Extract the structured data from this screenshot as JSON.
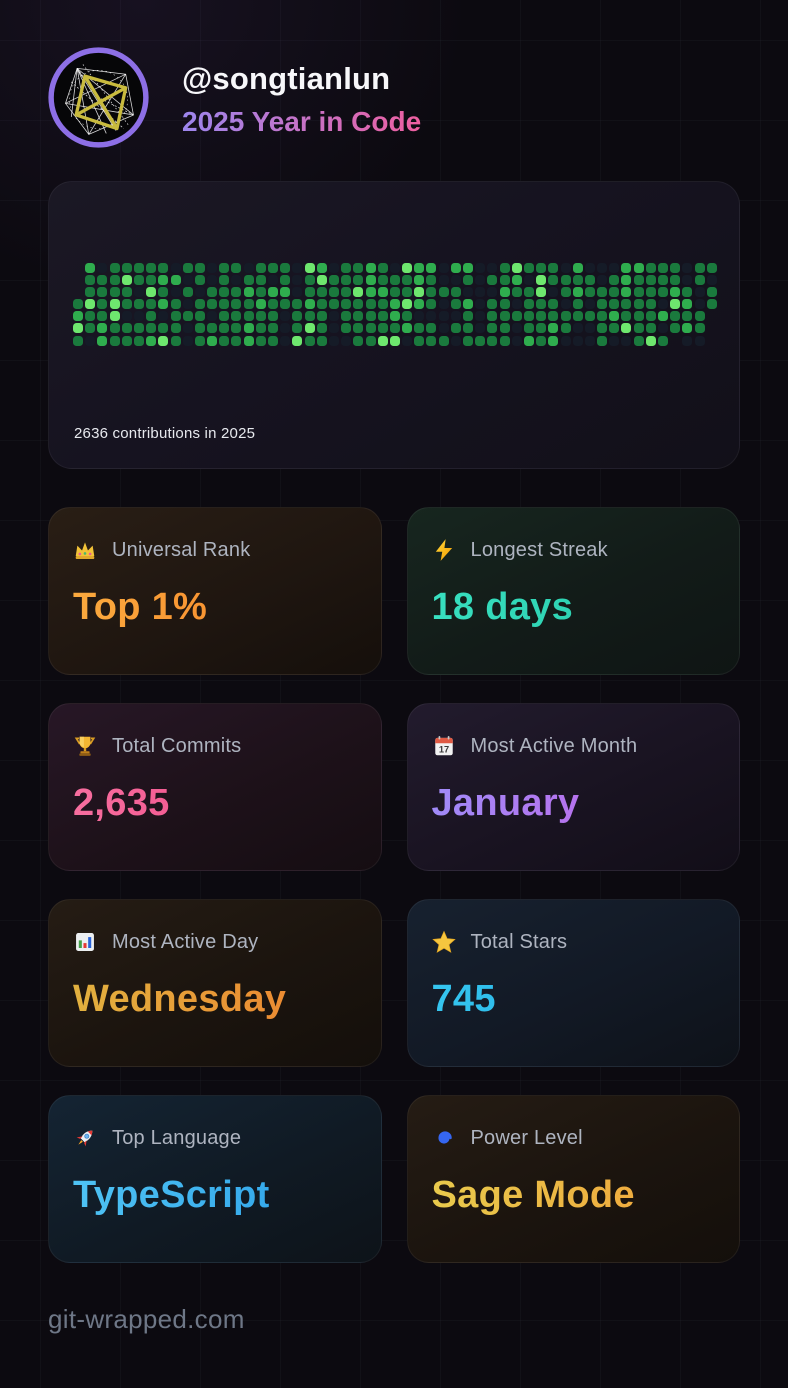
{
  "header": {
    "username": "@songtianlun",
    "subtitle": "2025 Year in Code",
    "subtitle_gradient": [
      "#9d86ee",
      "#ee5fa0"
    ],
    "avatar": {
      "icon": "generative-avatar",
      "ring_color": "#8d6fe6"
    }
  },
  "contributions": {
    "caption": "2636 contributions in 2025",
    "palette": [
      "#151b27",
      "#0e4429",
      "#1a7a3d",
      "#2fad4e",
      "#6ee76e"
    ],
    "grid": [
      ".3022222022022022204302232043303300242220300033222022",
      ".2224223302020220202422232223200202230422220232222020",
      ".2222042020222323302222433224222000322402322232223202",
      "24242223202222232223222222343202302202220202222204302",
      "3224002022202222202220222232000020222222222232223222.",
      "4232222220222232202420222223220220220223200224220232.",
      "2032223420232232204220022440222022220323000200242 00.."
    ]
  },
  "stats": [
    {
      "id": "universal-rank",
      "icon": "crown-icon",
      "label": "Universal Rank",
      "value": "Top 1%",
      "gradient": [
        "#fbaa3e",
        "#f57c24"
      ]
    },
    {
      "id": "longest-streak",
      "icon": "lightning-icon",
      "label": "Longest Streak",
      "value": "18 days",
      "gradient": [
        "#38e0c0",
        "#25c5a5"
      ]
    },
    {
      "id": "total-commits",
      "icon": "trophy-icon",
      "label": "Total Commits",
      "value": "2,635",
      "gradient": [
        "#f76e9f",
        "#ee3e7e"
      ]
    },
    {
      "id": "most-active-month",
      "icon": "calendar-icon",
      "label": "Most Active Month",
      "value": "January",
      "gradient": [
        "#a08bf8",
        "#ca5ce4"
      ],
      "icon_day": "17"
    },
    {
      "id": "most-active-day",
      "icon": "bar-chart-icon",
      "label": "Most Active Day",
      "value": "Wednesday",
      "gradient": [
        "#e2b13f",
        "#ee7f2e"
      ]
    },
    {
      "id": "total-stars",
      "icon": "star-icon",
      "label": "Total Stars",
      "value": "745",
      "gradient": [
        "#36c6f0",
        "#18a2dc"
      ]
    },
    {
      "id": "top-language",
      "icon": "rocket-icon",
      "label": "Top Language",
      "value": "TypeScript",
      "gradient": [
        "#4fc3f4",
        "#2b9fe8"
      ]
    },
    {
      "id": "power-level",
      "icon": "cyclone-icon",
      "label": "Power Level",
      "value": "Sage Mode",
      "gradient": [
        "#e9ca4c",
        "#f0a13a"
      ]
    }
  ],
  "footer": {
    "site": "git-wrapped.com"
  }
}
